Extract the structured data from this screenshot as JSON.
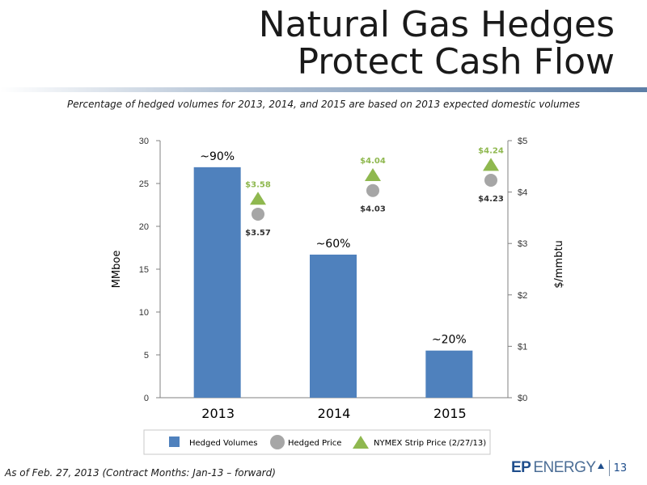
{
  "slide": {
    "title_line1": "Natural Gas Hedges",
    "title_line2": "Protect Cash Flow",
    "subtitle": "Percentage of hedged volumes for 2013, 2014, and 2015 are based on 2013 expected domestic volumes",
    "footnote": "As of Feb. 27, 2013 (Contract Months:  Jan-13 – forward)",
    "page_number": "13",
    "logo": {
      "ep": "EP",
      "energy": "ENERGY"
    }
  },
  "colors": {
    "bar": "#4f81bd",
    "hedged_price": "#a6a6a6",
    "nymex": "#8fb84f",
    "axis": "#808080",
    "label_green": "#8fb84f"
  },
  "chart_data": {
    "type": "bar",
    "categories": [
      "2013",
      "2014",
      "2015"
    ],
    "ylabel": "MMboe",
    "y2label": "$/mmbtu",
    "ylim": [
      0,
      30
    ],
    "y2lim": [
      0,
      5
    ],
    "yticks": [
      "0",
      "5",
      "10",
      "15",
      "20",
      "25",
      "30"
    ],
    "y2ticks": [
      "$0",
      "$1",
      "$2",
      "$3",
      "$4",
      "$5"
    ],
    "grid": false,
    "legend_position": "bottom",
    "series": [
      {
        "name": "Hedged Volumes",
        "axis": "left",
        "type": "bar",
        "values": [
          26.9,
          16.7,
          5.5
        ],
        "labels": [
          "~90%",
          "~60%",
          "~20%"
        ]
      },
      {
        "name": "Hedged Price",
        "axis": "right",
        "type": "scatter",
        "marker": "circle",
        "values": [
          3.57,
          4.03,
          4.23
        ],
        "labels": [
          "$3.57",
          "$4.03",
          "$4.23"
        ]
      },
      {
        "name": "NYMEX Strip Price (2/27/13)",
        "axis": "right",
        "type": "scatter",
        "marker": "triangle",
        "values": [
          3.58,
          4.04,
          4.24
        ],
        "labels": [
          "$3.58",
          "$4.04",
          "$4.24"
        ]
      }
    ]
  }
}
